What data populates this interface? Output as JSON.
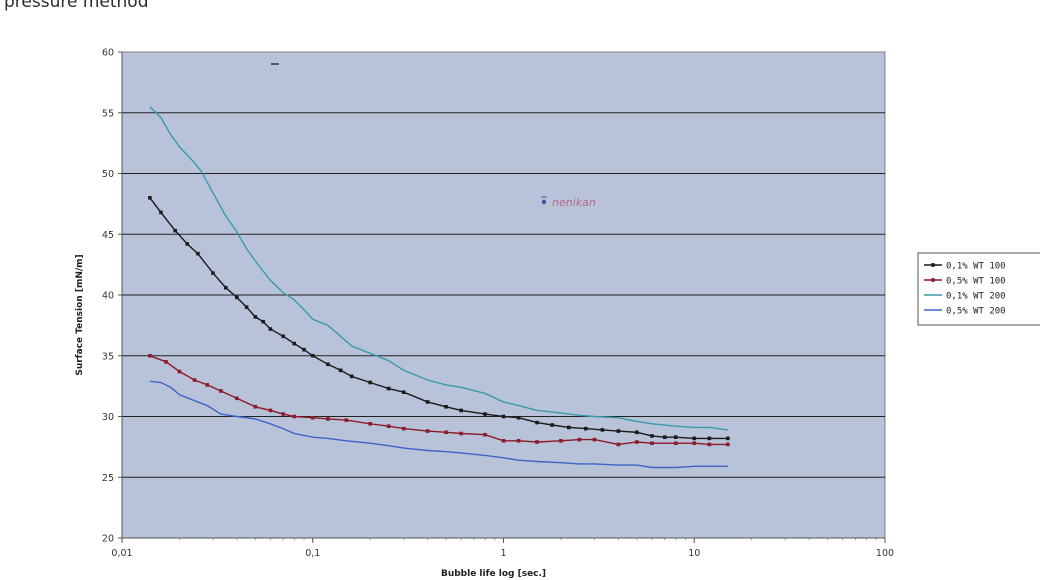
{
  "page": {
    "heading": "pressure method"
  },
  "chart_data": {
    "type": "line",
    "xscale": "log",
    "xlim": [
      0.01,
      100
    ],
    "ylim": [
      20,
      60
    ],
    "xlabel": "Bubble life log [sec.]",
    "ylabel": "Surface Tension [mN/m]",
    "x_ticks": [
      0.01,
      0.1,
      1,
      10,
      100
    ],
    "x_tick_labels": [
      "0,01",
      "0,1",
      "1",
      "10",
      "100"
    ],
    "y_ticks": [
      20,
      25,
      30,
      35,
      40,
      45,
      50,
      55,
      60
    ],
    "y_tick_labels": [
      "20",
      "25",
      "30",
      "35",
      "40",
      "45",
      "50",
      "55",
      "60"
    ],
    "grid": "horizontal",
    "plot_background": "#b8c3d9",
    "legend_position": "right",
    "annotation": "nenikan",
    "series": [
      {
        "name": "0,1% WT 100",
        "color": "#1a1a1a",
        "marker": "square",
        "x": [
          0.014,
          0.016,
          0.019,
          0.022,
          0.025,
          0.03,
          0.035,
          0.04,
          0.045,
          0.05,
          0.055,
          0.06,
          0.07,
          0.08,
          0.09,
          0.1,
          0.12,
          0.14,
          0.16,
          0.2,
          0.25,
          0.3,
          0.4,
          0.5,
          0.6,
          0.8,
          1.0,
          1.2,
          1.5,
          1.8,
          2.2,
          2.7,
          3.3,
          4,
          5,
          6,
          7,
          8,
          10,
          12,
          15
        ],
        "y": [
          48,
          46.8,
          45.3,
          44.2,
          43.4,
          41.8,
          40.6,
          39.8,
          39.0,
          38.2,
          37.8,
          37.2,
          36.6,
          36.0,
          35.5,
          35.0,
          34.3,
          33.8,
          33.3,
          32.8,
          32.3,
          32.0,
          31.2,
          30.8,
          30.5,
          30.2,
          30.0,
          29.9,
          29.5,
          29.3,
          29.1,
          29.0,
          28.9,
          28.8,
          28.7,
          28.4,
          28.3,
          28.3,
          28.2,
          28.2,
          28.2
        ]
      },
      {
        "name": "0,5% WT 100",
        "color": "#8b1a2a",
        "marker": "square",
        "x": [
          0.014,
          0.017,
          0.02,
          0.024,
          0.028,
          0.033,
          0.04,
          0.05,
          0.06,
          0.07,
          0.08,
          0.1,
          0.12,
          0.15,
          0.2,
          0.25,
          0.3,
          0.4,
          0.5,
          0.6,
          0.8,
          1.0,
          1.2,
          1.5,
          2.0,
          2.5,
          3.0,
          4.0,
          5.0,
          6.0,
          8.0,
          10,
          12,
          15
        ],
        "y": [
          35,
          34.5,
          33.7,
          33.0,
          32.6,
          32.1,
          31.5,
          30.8,
          30.5,
          30.2,
          30.0,
          29.9,
          29.8,
          29.7,
          29.4,
          29.2,
          29.0,
          28.8,
          28.7,
          28.6,
          28.5,
          28.0,
          28.0,
          27.9,
          28.0,
          28.1,
          28.1,
          27.7,
          27.9,
          27.8,
          27.8,
          27.8,
          27.7,
          27.7
        ]
      },
      {
        "name": "0,1% WT 200",
        "color": "#3a9aa8",
        "marker": "none",
        "x": [
          0.014,
          0.016,
          0.018,
          0.02,
          0.023,
          0.026,
          0.03,
          0.035,
          0.04,
          0.045,
          0.05,
          0.06,
          0.07,
          0.08,
          0.09,
          0.1,
          0.12,
          0.14,
          0.16,
          0.2,
          0.25,
          0.3,
          0.4,
          0.5,
          0.6,
          0.8,
          1.0,
          1.2,
          1.5,
          2.0,
          2.5,
          3.0,
          4.0,
          5.0,
          6.0,
          8.0,
          10,
          12,
          15
        ],
        "y": [
          55.5,
          54.6,
          53.2,
          52.2,
          51.2,
          50.2,
          48.4,
          46.5,
          45.2,
          43.8,
          42.8,
          41.2,
          40.2,
          39.6,
          38.8,
          38.0,
          37.5,
          36.6,
          35.8,
          35.2,
          34.6,
          33.8,
          33.0,
          32.6,
          32.4,
          31.9,
          31.2,
          30.9,
          30.5,
          30.3,
          30.1,
          30.0,
          29.9,
          29.6,
          29.4,
          29.2,
          29.1,
          29.1,
          28.9
        ]
      },
      {
        "name": "0,5% WT 200",
        "color": "#3d63c8",
        "marker": "none",
        "x": [
          0.014,
          0.016,
          0.018,
          0.02,
          0.024,
          0.028,
          0.033,
          0.04,
          0.05,
          0.06,
          0.07,
          0.08,
          0.1,
          0.12,
          0.15,
          0.2,
          0.25,
          0.3,
          0.4,
          0.5,
          0.6,
          0.8,
          1.0,
          1.2,
          1.5,
          2.0,
          2.5,
          3.0,
          4.0,
          5.0,
          6.0,
          8.0,
          10,
          12,
          15
        ],
        "y": [
          32.9,
          32.8,
          32.4,
          31.8,
          31.3,
          30.9,
          30.2,
          30.0,
          29.8,
          29.4,
          29.0,
          28.6,
          28.3,
          28.2,
          28.0,
          27.8,
          27.6,
          27.4,
          27.2,
          27.1,
          27.0,
          26.8,
          26.6,
          26.4,
          26.3,
          26.2,
          26.1,
          26.1,
          26.0,
          26.0,
          25.8,
          25.8,
          25.9,
          25.9,
          25.9
        ]
      }
    ]
  }
}
